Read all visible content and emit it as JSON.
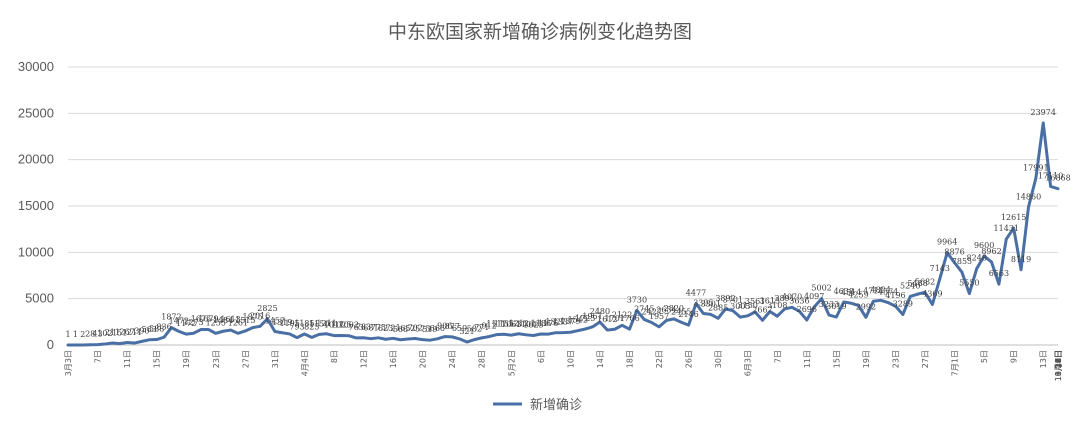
{
  "chart_data": {
    "type": "line",
    "title": "中东欧国家新增确诊病例变化趋势图",
    "xlabel": "",
    "ylabel": "",
    "ylim": [
      0,
      30000
    ],
    "yticks": [
      0,
      5000,
      10000,
      15000,
      20000,
      25000,
      30000
    ],
    "grid": true,
    "legend_position": "bottom",
    "x_labels": [
      "3月3日",
      "7日",
      "11日",
      "15日",
      "19日",
      "23日",
      "27日",
      "31日",
      "4月4日",
      "8日",
      "12日",
      "16日",
      "20日",
      "24日",
      "28日",
      "5月2日",
      "6日",
      "10日",
      "14日",
      "18日",
      "22日",
      "26日",
      "30日",
      "6月3日",
      "7日",
      "11日",
      "15日",
      "19日",
      "23日",
      "27日",
      "7月1日",
      "5日",
      "9日",
      "13日",
      "17日",
      "21日",
      "25日",
      "29日",
      "8月2日",
      "6日",
      "10日",
      "14日",
      "18日",
      "22日",
      "26日",
      "30日",
      "9月3日",
      "7日",
      "11日",
      "15日",
      "19日",
      "23日",
      "27日",
      "10月1日",
      "5日",
      "9日",
      "13日",
      "17日",
      "21日",
      "25日",
      "29日",
      "11月2日",
      "6日",
      "10日",
      "14日"
    ],
    "series": [
      {
        "name": "新增确诊",
        "color": "#4A6FA5",
        "values": [
          1,
          1,
          2,
          28,
          43,
          102,
          211,
          151,
          267,
          211,
          390,
          563,
          588,
          836,
          1872,
          1472,
          1172,
          1273,
          1675,
          1679,
          1255,
          1484,
          1613,
          1261,
          1515,
          1875,
          2016,
          2825,
          1457,
          1319,
          1195,
          793,
          1185,
          825,
          1150,
          1211,
          1017,
          1025,
          1002,
          763,
          783,
          681,
          775,
          623,
          721,
          566,
          652,
          702,
          575,
          519,
          666,
          906,
          877,
          659,
          321,
          582,
          771,
          912,
          1117,
          1155,
          1063,
          1212,
          1100,
          1025,
          1186,
          1176,
          1327,
          1337,
          1379,
          1542,
          1725,
          1961,
          2480,
          1612,
          1701,
          2122,
          1706,
          3730,
          2745,
          2427,
          1957,
          2654,
          2820,
          2455,
          2146,
          4477,
          3395,
          3301,
          2885,
          3892,
          3701,
          3005,
          3150,
          3561,
          2667,
          3615,
          3108,
          3891,
          4070,
          3636,
          2696,
          4097,
          5002,
          3233,
          3019,
          4638,
          4514,
          4259,
          2992,
          4717,
          4824,
          4574,
          4196,
          3289,
          5240,
          5488,
          5682,
          4369,
          7143,
          9964,
          8876,
          7855,
          5550,
          8248,
          9600,
          8962,
          6563,
          11431,
          12615,
          8119,
          14860,
          17991,
          23974,
          17110,
          16868
        ]
      }
    ],
    "data_labels": [
      "1",
      "1",
      "2",
      "28",
      "43",
      "102",
      "211",
      "151",
      "267",
      "211",
      "390",
      "563",
      "588",
      "836",
      "1872",
      "1472",
      "1172",
      "1273",
      "1675",
      "1679",
      "1255",
      "1484",
      "1613",
      "1261",
      "1515",
      "1875",
      "2016",
      "2825",
      "1457",
      "1319",
      "1195",
      "793",
      "1185",
      "825",
      "1150",
      "1211",
      "1017",
      "1025",
      "1002",
      "763",
      "783",
      "681",
      "775",
      "623",
      "721",
      "566",
      "652",
      "702",
      "575",
      "519",
      "666",
      "906",
      "877",
      "659",
      "321",
      "582",
      "771",
      "912",
      "1117",
      "1155",
      "1063",
      "1212",
      "1100",
      "1025",
      "1186",
      "1176",
      "1327",
      "1337",
      "1379",
      "1542",
      "1725",
      "1961",
      "2480",
      "1612",
      "1701",
      "2122",
      "1706",
      "3730",
      "2745",
      "2427",
      "1957",
      "2654",
      "2820",
      "2455",
      "2146",
      "4477",
      "3395",
      "3301",
      "2885",
      "3892",
      "3701",
      "3005",
      "3150",
      "3561",
      "2667",
      "3615",
      "3108",
      "3891",
      "4070",
      "3636",
      "2696",
      "4097",
      "5002",
      "3233",
      "3019",
      "4638",
      "4514",
      "4259",
      "2992",
      "4717",
      "4824",
      "4574",
      "4196",
      "3289",
      "5240",
      "5488",
      "5682",
      "4369",
      "7143",
      "9964",
      "8876",
      "7855",
      "5550",
      "8248",
      "9600",
      "8962",
      "6563",
      "11431",
      "12615",
      "8119",
      "14860",
      "17991",
      "23974",
      "17110",
      "16868"
    ]
  }
}
